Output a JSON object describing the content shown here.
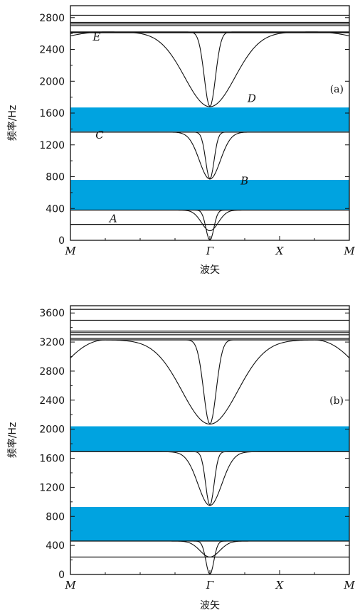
{
  "chart_data": [
    {
      "type": "line",
      "panel_label": "(a)",
      "xlabel": "波矢",
      "ylabel": "频率/Hz",
      "x_tick_labels": [
        "M",
        "Γ",
        "X",
        "M"
      ],
      "ylim": [
        0,
        2950
      ],
      "y_ticks": [
        0,
        400,
        800,
        1200,
        1600,
        2000,
        2400,
        2800
      ],
      "band_gaps": [
        [
          380,
          760
        ],
        [
          1370,
          1670
        ]
      ],
      "gap_color": "#00a3e0",
      "flat_bands": [
        200,
        380,
        1360,
        2610,
        2620,
        2700,
        2720,
        2740,
        2830
      ],
      "valley_branches": [
        {
          "left": 380,
          "min": 0,
          "right": 380,
          "w": 0.028
        },
        {
          "left": 380,
          "min": 120,
          "right": 380,
          "w": 0.06
        },
        {
          "left": 1360,
          "min": 770,
          "right": 1360,
          "w": 0.03
        },
        {
          "left": 1360,
          "min": 770,
          "right": 1360,
          "w": 0.075
        },
        {
          "left": 2620,
          "min": 1680,
          "right": 2620,
          "w": 0.04
        },
        {
          "left": 2620,
          "min": 1680,
          "right": 2620,
          "w": 0.18,
          "edge": 2570
        }
      ],
      "band_letters": [
        {
          "text": "A",
          "x": -0.72,
          "y": 230
        },
        {
          "text": "B",
          "x": 0.22,
          "y": 700
        },
        {
          "text": "C",
          "x": -0.82,
          "y": 1280
        },
        {
          "text": "D",
          "x": 0.27,
          "y": 1740
        },
        {
          "text": "E",
          "x": -0.84,
          "y": 2510
        }
      ]
    },
    {
      "type": "line",
      "panel_label": "(b)",
      "xlabel": "波矢",
      "ylabel": "频率/Hz",
      "x_tick_labels": [
        "M",
        "Γ",
        "X",
        "M"
      ],
      "ylim": [
        0,
        3700
      ],
      "y_ticks": [
        0,
        400,
        800,
        1200,
        1600,
        2000,
        2400,
        2800,
        3200,
        3600
      ],
      "band_gaps": [
        [
          460,
          930
        ],
        [
          1700,
          2040
        ]
      ],
      "gap_color": "#00a3e0",
      "flat_bands": [
        240,
        460,
        1690,
        3230,
        3250,
        3300,
        3330,
        3350,
        3500,
        3650
      ],
      "valley_branches": [
        {
          "left": 460,
          "min": 0,
          "right": 460,
          "w": 0.028
        },
        {
          "left": 460,
          "min": 240,
          "right": 460,
          "w": 0.07
        },
        {
          "left": 1690,
          "min": 950,
          "right": 1690,
          "w": 0.03
        },
        {
          "left": 1690,
          "min": 950,
          "right": 1690,
          "w": 0.085
        },
        {
          "left": 3230,
          "min": 2070,
          "right": 3230,
          "w": 0.045
        },
        {
          "left": 3230,
          "min": 2070,
          "right": 3230,
          "w": 0.2,
          "edge": 2980
        }
      ],
      "band_letters": []
    }
  ]
}
